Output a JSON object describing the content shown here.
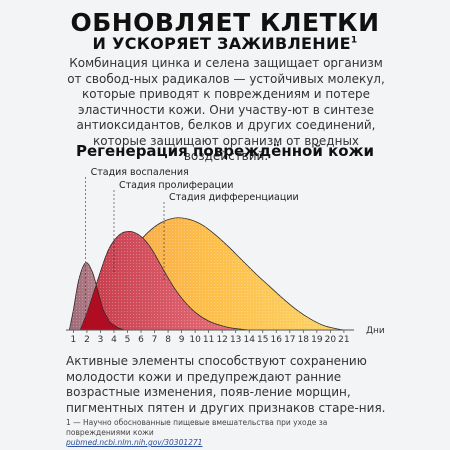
{
  "header": {
    "title_line1": "ОБНОВЛЯЕТ КЛЕТКИ",
    "title_line2": "И УСКОРЯЕТ ЗАЖИВЛЕНИЕ",
    "title_sup": "1"
  },
  "intro": {
    "text": "Комбинация цинка и селена защищает организм от свобод-ных радикалов — устойчивых молекул, которые приводят к повреждениям и потере эластичности кожи. Они участву-ют в синтезе антиоксидантов, белков и других соединений, которые защищают организм от вредных воздействий."
  },
  "chart_data": {
    "type": "area",
    "title": "Регенерация повреждённой кожи",
    "xlabel": "Дни",
    "ylabel": "",
    "x_ticks": [
      "1",
      "2",
      "3",
      "4",
      "5",
      "6",
      "7",
      "8",
      "9",
      "10",
      "11",
      "12",
      "13",
      "14",
      "15",
      "16",
      "17",
      "18",
      "19",
      "20",
      "21"
    ],
    "xlim": [
      0.6,
      21.6
    ],
    "ylim": [
      0,
      1
    ],
    "grid": false,
    "series": [
      {
        "name": "Стадия воспаления",
        "color": "#b37f8a",
        "x": [
          0.7,
          1.0,
          1.4,
          1.9,
          2.4,
          2.8,
          3.2,
          3.7,
          4.3,
          4.8
        ],
        "y": [
          0.0,
          0.18,
          0.45,
          0.6,
          0.52,
          0.35,
          0.18,
          0.07,
          0.02,
          0.0
        ]
      },
      {
        "name": "Стадия пролиферации",
        "color": "#e05a6a",
        "x": [
          1.5,
          2.0,
          2.8,
          3.6,
          4.4,
          5.1,
          5.7,
          6.3,
          6.9,
          7.6,
          8.6,
          9.8,
          11.0,
          12.2,
          13.2,
          14.0
        ],
        "y": [
          0.0,
          0.15,
          0.45,
          0.72,
          0.85,
          0.88,
          0.86,
          0.8,
          0.7,
          0.55,
          0.35,
          0.18,
          0.08,
          0.03,
          0.01,
          0.0
        ]
      },
      {
        "name": "Стадия дифференциации",
        "color": "#fdbf4a",
        "x": [
          1.5,
          2.5,
          3.5,
          4.5,
          5.5,
          6.5,
          7.5,
          8.5,
          9.5,
          10.5,
          11.5,
          12.5,
          13.5,
          14.5,
          15.5,
          16.5,
          17.5,
          18.5,
          19.5,
          20.5,
          21.0
        ],
        "y": [
          0.0,
          0.12,
          0.32,
          0.54,
          0.73,
          0.87,
          0.96,
          1.0,
          0.99,
          0.94,
          0.85,
          0.74,
          0.62,
          0.5,
          0.39,
          0.28,
          0.18,
          0.1,
          0.04,
          0.01,
          0.0
        ]
      }
    ],
    "annotations": [
      {
        "text": "Стадия воспаления",
        "x": 1.9
      },
      {
        "text": "Стадия пролиферации",
        "x": 4.0
      },
      {
        "text": "Стадия дифференциации",
        "x": 7.7
      }
    ]
  },
  "outro": {
    "text": "Активные элементы способствуют сохранению молодости кожи и предупреждают ранние возрастные изменения, появ-ление морщин, пигментных пятен и других признаков старе-ния."
  },
  "footnote": {
    "text": "1 — Научно обоснованные пищевые вмешательства при уходе за повреждениями кожи",
    "link": "pubmed.ncbi.nlm.nih.gov/30301271"
  }
}
